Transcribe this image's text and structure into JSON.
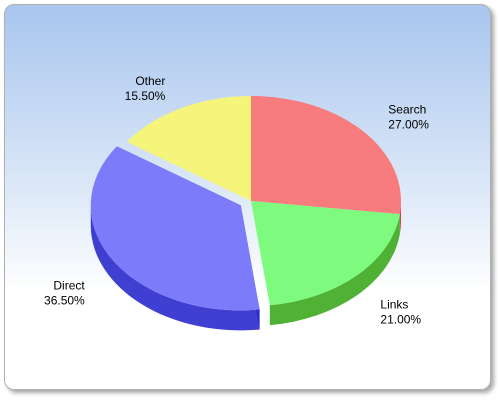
{
  "chart_data": {
    "type": "pie",
    "title": "",
    "is_3d": true,
    "legend": "none",
    "slices": [
      {
        "label": "Search",
        "value": 27.0,
        "display": "27.00%",
        "color": "#f87c7e",
        "side_color": "#e02830"
      },
      {
        "label": "Links",
        "value": 21.0,
        "display": "21.00%",
        "color": "#7efb7e",
        "side_color": "#3caa1e"
      },
      {
        "label": "Direct",
        "value": 36.5,
        "display": "36.50%",
        "color": "#7c7cfb",
        "side_color": "#2a2acc"
      },
      {
        "label": "Other",
        "value": 15.5,
        "display": "15.50%",
        "color": "#f5f57c",
        "side_color": "#dede28"
      }
    ]
  }
}
